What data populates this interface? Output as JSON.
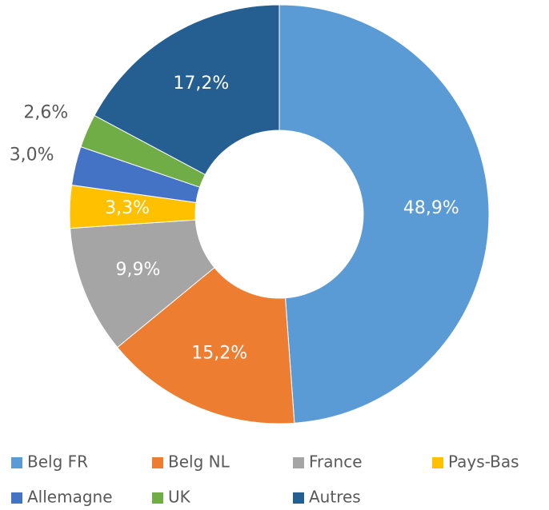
{
  "chart_data": {
    "type": "donut",
    "categories": [
      "Belg FR",
      "Belg NL",
      "France",
      "Pays-Bas",
      "Allemagne",
      "UK",
      "Autres"
    ],
    "values": [
      48.9,
      15.2,
      9.9,
      3.3,
      3.0,
      2.6,
      17.2
    ],
    "value_labels": [
      "48,9%",
      "15,2%",
      "9,9%",
      "3,3%",
      "3,0%",
      "2,6%",
      "17,2%"
    ],
    "colors": [
      "#5b9bd5",
      "#ed7d31",
      "#a5a5a5",
      "#ffc000",
      "#4472c4",
      "#70ad47",
      "#255e91"
    ],
    "legend": "bottom"
  }
}
